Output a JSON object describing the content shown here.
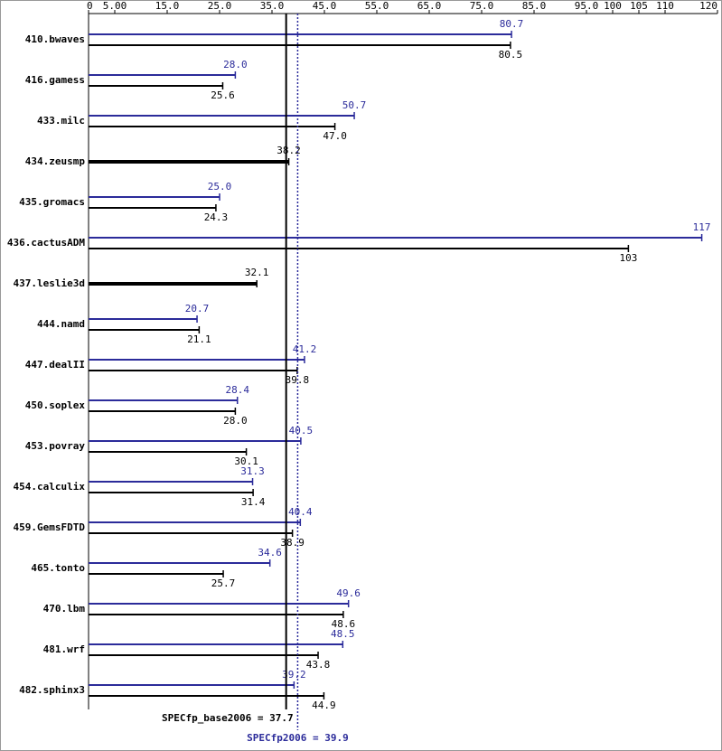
{
  "chart_data": {
    "type": "bar",
    "orientation": "horizontal",
    "categories": [
      "410.bwaves",
      "416.gamess",
      "433.milc",
      "434.zeusmp",
      "435.gromacs",
      "436.cactusADM",
      "437.leslie3d",
      "444.namd",
      "447.dealII",
      "450.soplex",
      "453.povray",
      "454.calculix",
      "459.GemsFDTD",
      "465.tonto",
      "470.lbm",
      "481.wrf",
      "482.sphinx3"
    ],
    "series": [
      {
        "color": "#2b2b9a",
        "values": [
          80.7,
          28.0,
          50.7,
          null,
          25.0,
          117,
          null,
          20.7,
          41.2,
          28.4,
          40.5,
          31.3,
          40.4,
          34.6,
          49.6,
          48.5,
          39.2
        ],
        "value_labels": [
          "80.7",
          "28.0",
          "50.7",
          null,
          "25.0",
          "117",
          null,
          "20.7",
          "41.2",
          "28.4",
          "40.5",
          "31.3",
          "40.4",
          "34.6",
          "49.6",
          "48.5",
          "39.2"
        ]
      },
      {
        "color": "#000000",
        "values": [
          80.5,
          25.6,
          47.0,
          38.2,
          24.3,
          103,
          32.1,
          21.1,
          39.8,
          28.0,
          30.1,
          31.4,
          38.9,
          25.7,
          48.6,
          43.8,
          44.9
        ],
        "value_labels": [
          "80.5",
          "25.6",
          "47.0",
          "38.2",
          "24.3",
          "103",
          "32.1",
          "21.1",
          "39.8",
          "28.0",
          "30.1",
          "31.4",
          "38.9",
          "25.7",
          "48.6",
          "43.8",
          "44.9"
        ]
      }
    ],
    "xlim": [
      0,
      120
    ],
    "xticks": [
      0,
      {
        "value": 5,
        "label": "5.00"
      },
      {
        "value": 15,
        "label": "15.0"
      },
      {
        "value": 25,
        "label": "25.0"
      },
      {
        "value": 35,
        "label": "35.0"
      },
      {
        "value": 45,
        "label": "45.0"
      },
      {
        "value": 55,
        "label": "55.0"
      },
      {
        "value": 65,
        "label": "65.0"
      },
      {
        "value": 75,
        "label": "75.0"
      },
      {
        "value": 85,
        "label": "85.0"
      },
      {
        "value": 95,
        "label": "95.0"
      },
      100,
      105,
      110,
      120
    ],
    "reference_lines": [
      {
        "value": 37.7,
        "label": "SPECfp_base2006 = 37.7",
        "color": "#000000",
        "dashed": false
      },
      {
        "value": 39.9,
        "label": "SPECfp2006 = 39.9",
        "color": "#2b2b9a",
        "dashed": true
      }
    ]
  }
}
